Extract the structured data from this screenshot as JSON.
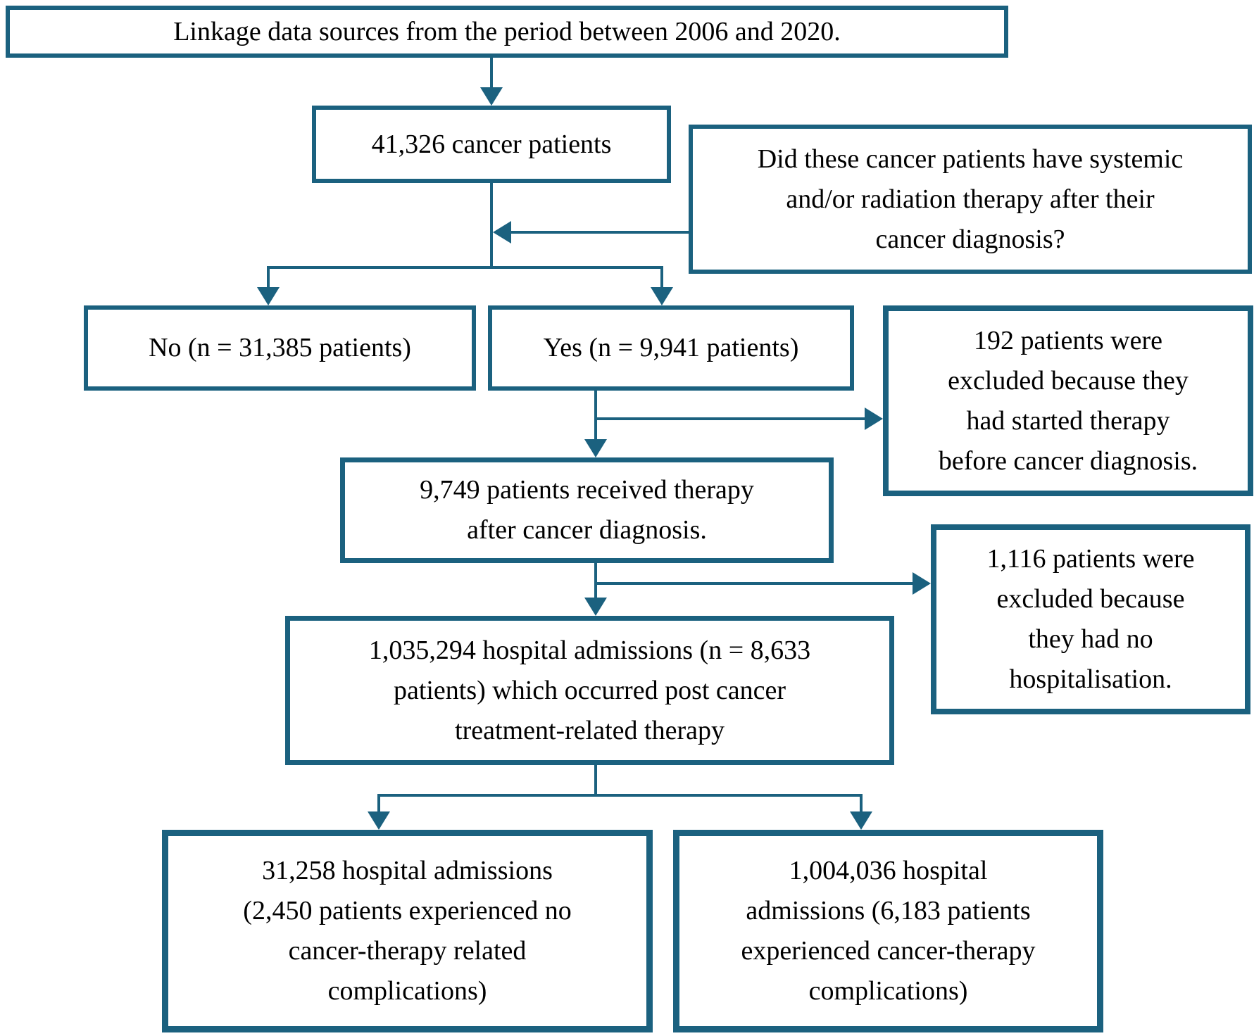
{
  "figure": {
    "background_color": "#ffffff",
    "accent_color": "#1b617f",
    "text_color": "#000000"
  },
  "nodes": {
    "source": {
      "text": "Linkage data sources from the period between 2006 and 2020."
    },
    "patients": {
      "text": "41,326 cancer patients"
    },
    "question": {
      "lines": [
        "Did these cancer patients have systemic",
        "and/or radiation therapy after their",
        "cancer diagnosis?"
      ]
    },
    "no_branch": {
      "text": "No (n = 31,385 patients)"
    },
    "yes_branch": {
      "text": "Yes (n = 9,941 patients)"
    },
    "excluded_pretherapy": {
      "lines": [
        "192 patients were",
        "excluded because they",
        "had started therapy",
        "before cancer diagnosis."
      ]
    },
    "received_therapy": {
      "lines": [
        "9,749 patients received therapy",
        "after cancer diagnosis."
      ]
    },
    "excluded_no_hospitalisation": {
      "lines": [
        "1,116 patients were",
        "excluded because",
        "they had no",
        "hospitalisation."
      ]
    },
    "admissions": {
      "lines": [
        "1,035,294 hospital admissions (n = 8,633",
        "patients) which occurred post cancer",
        "treatment-related therapy"
      ]
    },
    "no_complications": {
      "lines": [
        "31,258 hospital admissions",
        "(2,450 patients experienced no",
        "cancer-therapy related",
        "complications)"
      ]
    },
    "complications": {
      "lines": [
        "1,004,036 hospital",
        "admissions (6,183 patients",
        "experienced cancer-therapy",
        "complications)"
      ]
    }
  },
  "edges": [
    {
      "from": "source",
      "to": "patients"
    },
    {
      "from": "question",
      "to": "patients-flow-line"
    },
    {
      "from": "patients",
      "to": "no_branch"
    },
    {
      "from": "patients",
      "to": "yes_branch"
    },
    {
      "from": "yes_branch",
      "to": "excluded_pretherapy"
    },
    {
      "from": "yes_branch",
      "to": "received_therapy"
    },
    {
      "from": "received_therapy",
      "to": "excluded_no_hospitalisation"
    },
    {
      "from": "received_therapy",
      "to": "admissions"
    },
    {
      "from": "admissions",
      "to": "no_complications"
    },
    {
      "from": "admissions",
      "to": "complications"
    }
  ]
}
